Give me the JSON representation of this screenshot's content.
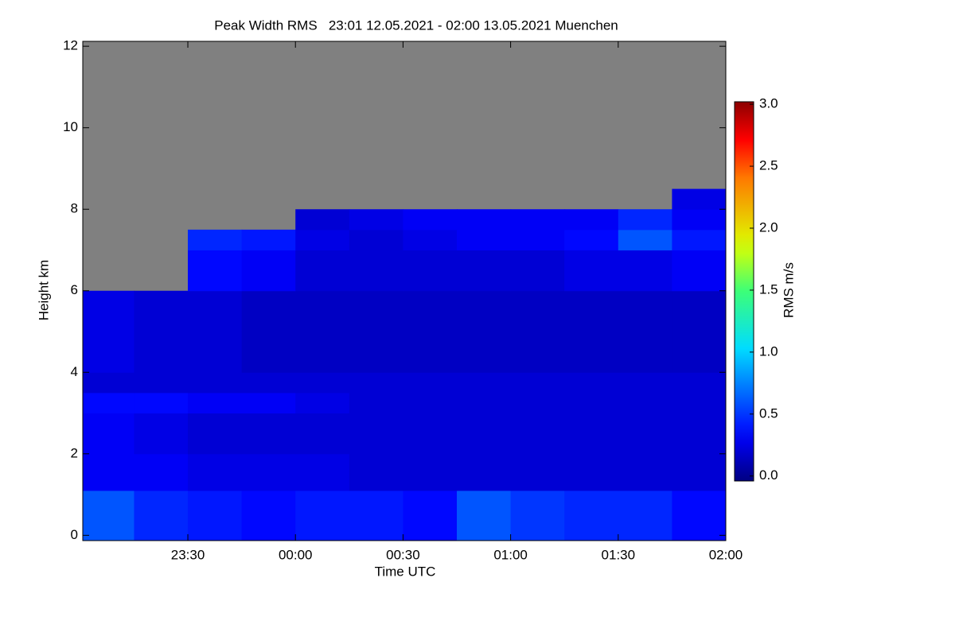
{
  "chart_data": {
    "type": "heatmap",
    "title": "Peak Width RMS   23:01 12.05.2021 - 02:00 13.05.2021 Muenchen",
    "xlabel": "Time UTC",
    "ylabel": "Height km",
    "colorbar_label": "RMS m/s",
    "colormap": "rainbow",
    "no_data_color": "#808080",
    "xlim": [
      23.0117,
      26.0
    ],
    "xticks": [
      {
        "value": 23.5,
        "label": "23:30"
      },
      {
        "value": 24,
        "label": "00:00"
      },
      {
        "value": 24.5,
        "label": "00:30"
      },
      {
        "value": 25,
        "label": "01:00"
      },
      {
        "value": 25.5,
        "label": "01:30"
      },
      {
        "value": 26,
        "label": "02:00"
      }
    ],
    "ylim": [
      -0.13,
      12.12
    ],
    "yticks": [
      0,
      2,
      4,
      6,
      8,
      10,
      12
    ],
    "clim": [
      -0.04,
      3.02
    ],
    "cticks": [
      {
        "value": 0,
        "label": "0.0"
      },
      0.5,
      {
        "value": 1,
        "label": "1.0"
      },
      1.5,
      {
        "value": 2,
        "label": "2.0"
      },
      2.5,
      {
        "value": 3,
        "label": "3.0"
      }
    ],
    "x_edges": [
      23.0117,
      23.25,
      23.5,
      23.75,
      24.0,
      24.25,
      24.5,
      24.75,
      25.0,
      25.25,
      25.5,
      25.75,
      26.0
    ],
    "y_edges": [
      -0.13,
      1.1,
      2,
      3,
      3.5,
      4,
      5,
      6,
      7,
      7.5,
      8,
      8.5
    ],
    "z": [
      [
        0.6,
        0.45,
        0.4,
        0.35,
        0.4,
        0.4,
        0.35,
        0.6,
        0.5,
        0.45,
        0.45,
        0.35
      ],
      [
        0.3,
        0.3,
        0.25,
        0.25,
        0.25,
        0.2,
        0.2,
        0.2,
        0.2,
        0.2,
        0.2,
        0.2
      ],
      [
        0.3,
        0.25,
        0.2,
        0.2,
        0.2,
        0.2,
        0.2,
        0.2,
        0.2,
        0.2,
        0.2,
        0.2
      ],
      [
        0.35,
        0.35,
        0.3,
        0.3,
        0.25,
        0.2,
        0.2,
        0.2,
        0.2,
        0.2,
        0.2,
        0.2
      ],
      [
        0.2,
        0.2,
        0.2,
        0.2,
        0.2,
        0.2,
        0.2,
        0.2,
        0.2,
        0.2,
        0.2,
        0.2
      ],
      [
        0.25,
        0.2,
        0.2,
        0.15,
        0.15,
        0.15,
        0.15,
        0.15,
        0.15,
        0.15,
        0.15,
        0.15
      ],
      [
        0.25,
        0.2,
        0.2,
        0.15,
        0.15,
        0.15,
        0.15,
        0.15,
        0.15,
        0.15,
        0.15,
        0.15
      ],
      [
        null,
        null,
        0.35,
        0.3,
        0.2,
        0.2,
        0.2,
        0.2,
        0.2,
        0.25,
        0.25,
        0.3
      ],
      [
        null,
        null,
        0.45,
        0.4,
        0.25,
        0.2,
        0.25,
        0.3,
        0.3,
        0.35,
        0.6,
        0.4
      ],
      [
        null,
        null,
        null,
        null,
        0.2,
        0.25,
        0.3,
        0.3,
        0.3,
        0.3,
        0.45,
        0.3
      ],
      [
        null,
        null,
        null,
        null,
        null,
        null,
        null,
        null,
        null,
        null,
        null,
        0.25
      ]
    ]
  }
}
